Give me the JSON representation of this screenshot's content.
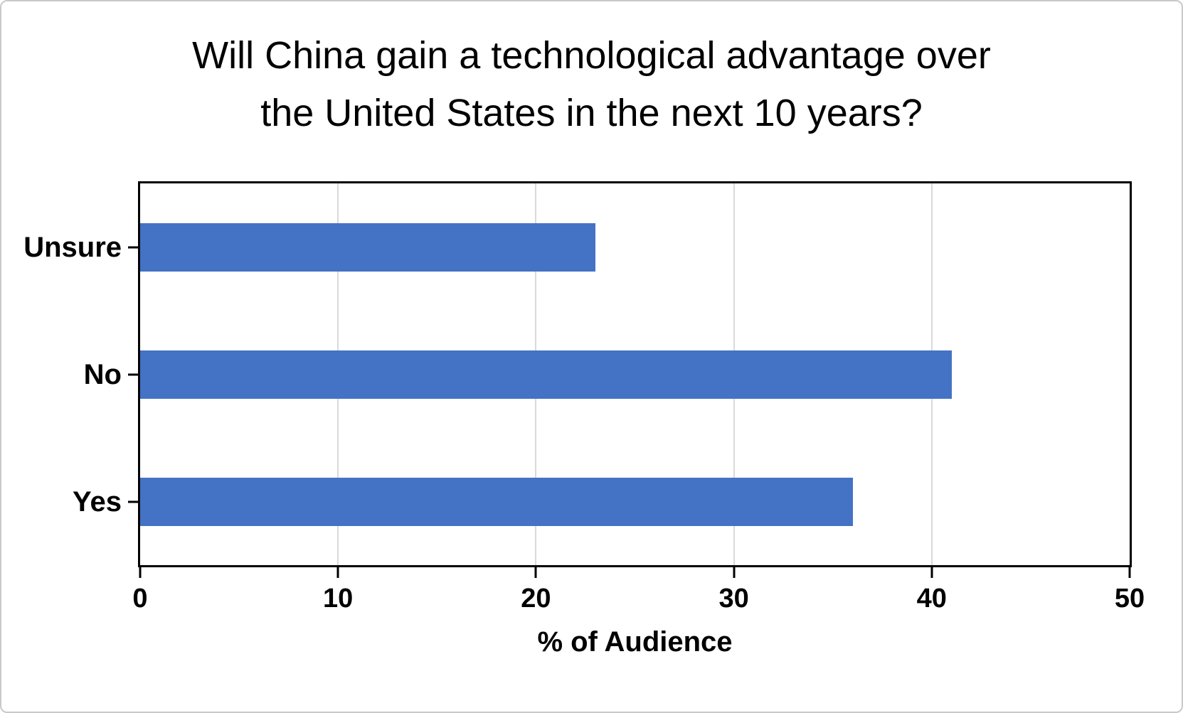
{
  "chart_data": {
    "type": "bar",
    "orientation": "horizontal",
    "title": "Will China gain a technological advantage over the United States in the next 10 years?",
    "title_lines": {
      "line1": "Will China gain a technological advantage over",
      "line2": "the United States in the next 10 years?"
    },
    "categories": [
      "Unsure",
      "No",
      "Yes"
    ],
    "values": [
      23,
      41,
      36
    ],
    "xlabel": "% of Audience",
    "ylabel": "",
    "x_ticks": [
      0,
      10,
      20,
      30,
      40,
      50
    ],
    "xlim": [
      0,
      50
    ],
    "grid": "vertical-gridlines-on",
    "legend": "none",
    "colors": {
      "bar": "#4472c4",
      "gridline": "#d9d9d9",
      "axis": "#000000",
      "text": "#000000",
      "frame_border": "#c9c9c9",
      "background": "#ffffff"
    }
  }
}
